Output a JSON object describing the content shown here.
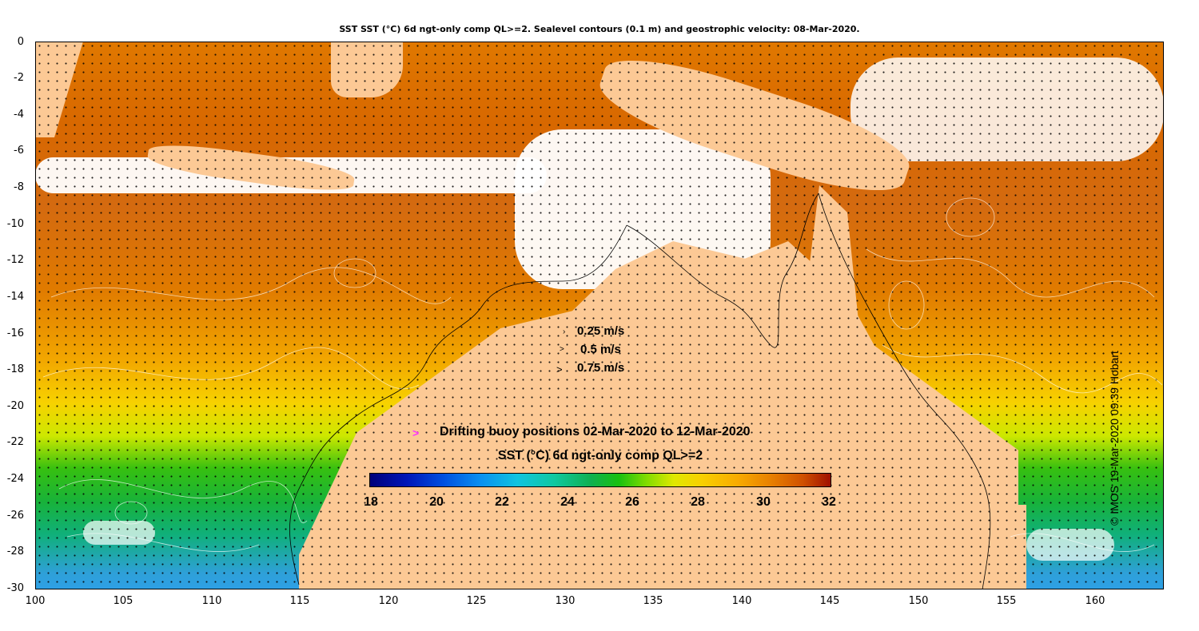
{
  "title": "SST SST (°C) 6d ngt-only comp QL>=2. Sealevel contours (0.1 m) and geostrophic velocity: 08-Mar-2020.",
  "y_ticks": [
    "0",
    "-2",
    "-4",
    "-6",
    "-8",
    "-10",
    "-12",
    "-14",
    "-16",
    "-18",
    "-20",
    "-22",
    "-24",
    "-26",
    "-28",
    "-30"
  ],
  "x_ticks": [
    "100",
    "105",
    "110",
    "115",
    "120",
    "125",
    "130",
    "135",
    "140",
    "145",
    "150",
    "155",
    "160"
  ],
  "velocity_scale": [
    "0.25 m/s",
    "0.5 m/s",
    "0.75 m/s"
  ],
  "buoy_label": "Drifting buoy positions 02-Mar-2020 to 12-Mar-2020",
  "buoy_marker_color": "#ff33ff",
  "colorbar": {
    "title": "SST (°C) 6d ngt-only comp QL>=2",
    "ticks": [
      "18",
      "20",
      "22",
      "24",
      "26",
      "28",
      "30",
      "32"
    ],
    "range": [
      18,
      32
    ]
  },
  "credit": "© IMOS 19-Mar-2020 09:39 Hobart",
  "land_color": "#fcc995"
}
